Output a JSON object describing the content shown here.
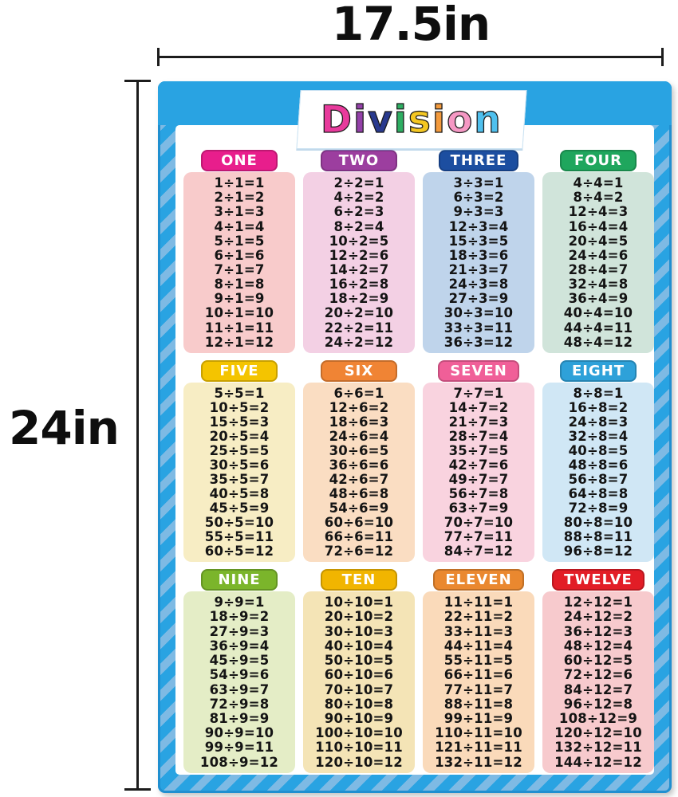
{
  "dimensions": {
    "width_label": "17.5in",
    "height_label": "24in"
  },
  "poster": {
    "title": "Division",
    "title_letters": [
      {
        "char": "D",
        "color": "#e83a9c"
      },
      {
        "char": "i",
        "color": "#9340a8"
      },
      {
        "char": "v",
        "color": "#28398e"
      },
      {
        "char": "i",
        "color": "#2eae62"
      },
      {
        "char": "s",
        "color": "#f4c722"
      },
      {
        "char": "i",
        "color": "#f39a3c"
      },
      {
        "char": "o",
        "color": "#f598c4"
      },
      {
        "char": "n",
        "color": "#4fc0ee"
      }
    ],
    "colors": {
      "poster_blue": "#29a3e2",
      "stripe_light": "#7ebae4",
      "panel": "#ffffff"
    },
    "tables": [
      {
        "name": "ONE",
        "header_color": "#e81e8c",
        "body_color": "#f8cbcb",
        "facts": [
          "1÷1=1",
          "2÷1=2",
          "3÷1=3",
          "4÷1=4",
          "5÷1=5",
          "6÷1=6",
          "7÷1=7",
          "8÷1=8",
          "9÷1=9",
          "10÷1=10",
          "11÷1=11",
          "12÷1=12"
        ]
      },
      {
        "name": "TWO",
        "header_color": "#9c3e9f",
        "body_color": "#f3d0e4",
        "facts": [
          "2÷2=1",
          "4÷2=2",
          "6÷2=3",
          "8÷2=4",
          "10÷2=5",
          "12÷2=6",
          "14÷2=7",
          "16÷2=8",
          "18÷2=9",
          "20÷2=10",
          "22÷2=11",
          "24÷2=12"
        ]
      },
      {
        "name": "THREE",
        "header_color": "#1c4ea0",
        "body_color": "#bfd4eb",
        "facts": [
          "3÷3=1",
          "6÷3=2",
          "9÷3=3",
          "12÷3=4",
          "15÷3=5",
          "18÷3=6",
          "21÷3=7",
          "24÷3=8",
          "27÷3=9",
          "30÷3=10",
          "33÷3=11",
          "36÷3=12"
        ]
      },
      {
        "name": "FOUR",
        "header_color": "#1fa65d",
        "body_color": "#d0e4da",
        "facts": [
          "4÷4=1",
          "8÷4=2",
          "12÷4=3",
          "16÷4=4",
          "20÷4=5",
          "24÷4=6",
          "28÷4=7",
          "32÷4=8",
          "36÷4=9",
          "40÷4=10",
          "44÷4=11",
          "48÷4=12"
        ]
      },
      {
        "name": "FIVE",
        "header_color": "#f4c400",
        "body_color": "#f7edc4",
        "facts": [
          "5÷5=1",
          "10÷5=2",
          "15÷5=3",
          "20÷5=4",
          "25÷5=5",
          "30÷5=6",
          "35÷5=7",
          "40÷5=8",
          "45÷5=9",
          "50÷5=10",
          "55÷5=11",
          "60÷5=12"
        ]
      },
      {
        "name": "SIX",
        "header_color": "#f08434",
        "body_color": "#faddc2",
        "facts": [
          "6÷6=1",
          "12÷6=2",
          "18÷6=3",
          "24÷6=4",
          "30÷6=5",
          "36÷6=6",
          "42÷6=7",
          "48÷6=8",
          "54÷6=9",
          "60÷6=10",
          "66÷6=11",
          "72÷6=12"
        ]
      },
      {
        "name": "SEVEN",
        "header_color": "#f05f98",
        "body_color": "#f9d3df",
        "facts": [
          "7÷7=1",
          "14÷7=2",
          "21÷7=3",
          "28÷7=4",
          "35÷7=5",
          "42÷7=6",
          "49÷7=7",
          "56÷7=8",
          "63÷7=9",
          "70÷7=10",
          "77÷7=11",
          "84÷7=12"
        ]
      },
      {
        "name": "EIGHT",
        "header_color": "#2ea1d9",
        "body_color": "#d0e7f5",
        "facts": [
          "8÷8=1",
          "16÷8=2",
          "24÷8=3",
          "32÷8=4",
          "40÷8=5",
          "48÷8=6",
          "56÷8=7",
          "64÷8=8",
          "72÷8=9",
          "80÷8=10",
          "88÷8=11",
          "96÷8=12"
        ]
      },
      {
        "name": "NINE",
        "header_color": "#7bb52b",
        "body_color": "#e4edc6",
        "facts": [
          "9÷9=1",
          "18÷9=2",
          "27÷9=3",
          "36÷9=4",
          "45÷9=5",
          "54÷9=6",
          "63÷9=7",
          "72÷9=8",
          "81÷9=9",
          "90÷9=10",
          "99÷9=11",
          "108÷9=12"
        ]
      },
      {
        "name": "TEN",
        "header_color": "#f1b500",
        "body_color": "#f4e4b6",
        "facts": [
          "10÷10=1",
          "20÷10=2",
          "30÷10=3",
          "40÷10=4",
          "50÷10=5",
          "60÷10=6",
          "70÷10=7",
          "80÷10=8",
          "90÷10=9",
          "100÷10=10",
          "110÷10=11",
          "120÷10=12"
        ]
      },
      {
        "name": "ELEVEN",
        "header_color": "#ea882f",
        "body_color": "#fadaba",
        "facts": [
          "11÷11=1",
          "22÷11=2",
          "33÷11=3",
          "44÷11=4",
          "55÷11=5",
          "66÷11=6",
          "77÷11=7",
          "88÷11=8",
          "99÷11=9",
          "110÷11=10",
          "121÷11=11",
          "132÷11=12"
        ]
      },
      {
        "name": "TWELVE",
        "header_color": "#e21d26",
        "body_color": "#f7cacd",
        "facts": [
          "12÷12=1",
          "24÷12=2",
          "36÷12=3",
          "48÷12=4",
          "60÷12=5",
          "72÷12=6",
          "84÷12=7",
          "96÷12=8",
          "108÷12=9",
          "120÷12=10",
          "132÷12=11",
          "144÷12=12"
        ]
      }
    ]
  }
}
